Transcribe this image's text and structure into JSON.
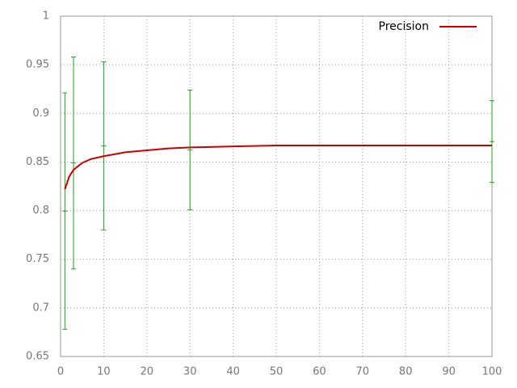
{
  "chart_data": {
    "type": "line",
    "xlim": [
      0,
      100
    ],
    "xticks": [
      0,
      10,
      20,
      30,
      40,
      50,
      60,
      70,
      80,
      90,
      100
    ],
    "ylim": [
      0.65,
      1
    ],
    "yticks": [
      0.65,
      0.7,
      0.75,
      0.8,
      0.85,
      0.9,
      0.95,
      1
    ],
    "grid": true,
    "legend": "top-right",
    "series": [
      {
        "name": "Precision",
        "color": "#cc0000",
        "x": [
          1,
          2,
          3,
          5,
          7,
          10,
          15,
          20,
          25,
          30,
          40,
          50,
          60,
          70,
          80,
          90,
          100
        ],
        "values": [
          0.822,
          0.835,
          0.842,
          0.849,
          0.853,
          0.856,
          0.86,
          0.862,
          0.864,
          0.865,
          0.866,
          0.867,
          0.867,
          0.867,
          0.867,
          0.867,
          0.867
        ]
      }
    ],
    "errorbars": {
      "color": "#22a022",
      "x": [
        1,
        3,
        10,
        30,
        100
      ],
      "values": [
        0.7995,
        0.849,
        0.8665,
        0.8625,
        0.871
      ],
      "errors": [
        0.1215,
        0.109,
        0.0865,
        0.0615,
        0.042
      ]
    }
  }
}
